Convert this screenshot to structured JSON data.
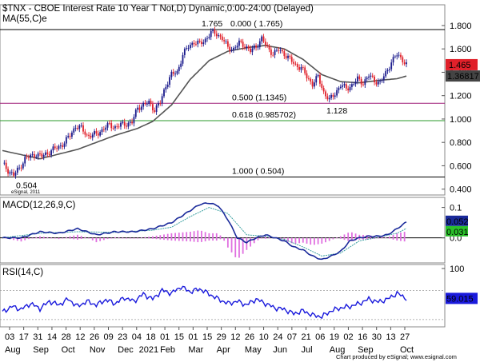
{
  "header": {
    "title": "$TNX - CBOE Interest Rate 10 Year T Not,D) Dynamic,0:00-24:00 (Delayed)",
    "ma_label": "MA(55,C)e",
    "macd_label": "MACD(12,26,9,C)",
    "rsi_label": "RSI(14,C)"
  },
  "footer": {
    "credit": "Chart produced by eSignal; www.esignal.com",
    "watermark": "eSignal, 2011"
  },
  "colors": {
    "up": "#1a1a8c",
    "down": "#e0202a",
    "ma": "#555555",
    "fib_500": "#a0207a",
    "fib_618": "#2a9a2a",
    "macd_line": "#1a2a9a",
    "signal_line": "#3aa0a0",
    "histogram": "#e070e0",
    "rsi": "#1a1adc",
    "price_box": "#e0202a",
    "ma_box": "#444444",
    "macd_box": "#1a2a9a",
    "signal_box": "#2ac02a",
    "rsi_box": "#1a1adc"
  },
  "chart_data": [
    {
      "type": "candlestick",
      "panel": "price",
      "ylim": [
        0.35,
        1.95
      ],
      "y_ticks": [
        "1.800",
        "1.600",
        "1.400",
        "1.200",
        "1.000",
        "0.800",
        "0.600",
        "0.400"
      ],
      "x_day_ticks": [
        "03",
        "17",
        "31",
        "14",
        "28",
        "12",
        "26",
        "09",
        "23",
        "04",
        "18",
        "01",
        "15",
        "01",
        "15",
        "29",
        "12",
        "26",
        "10",
        "24",
        "07",
        "21",
        "06",
        "19",
        "02",
        "16",
        "30",
        "13",
        "27"
      ],
      "x_month_labels": [
        "Aug",
        "Sep",
        "Oct",
        "Nov",
        "Dec",
        "2021",
        "Feb",
        "Mar",
        "Apr",
        "May",
        "Jun",
        "Jul",
        "Aug",
        "Sep",
        "Oct"
      ],
      "last_price": "1.465",
      "ma_value": "1.36817",
      "fib_lines": [
        {
          "label": "0.000 ( 1.765)",
          "value": 1.765
        },
        {
          "label": "0.500 (1.1345)",
          "value": 1.1345
        },
        {
          "label": "0.618 (0.985702)",
          "value": 0.985702
        },
        {
          "label": "1.000 ( 0.504)",
          "value": 0.504
        }
      ],
      "annotations": [
        {
          "text": "1.765",
          "value": 1.765
        },
        {
          "text": "1.128",
          "value": 1.128
        },
        {
          "text": "0.504",
          "value": 0.504
        }
      ],
      "close_path": [
        [
          0,
          0.62
        ],
        [
          3,
          0.56
        ],
        [
          6,
          0.52
        ],
        [
          9,
          0.58
        ],
        [
          12,
          0.66
        ],
        [
          15,
          0.68
        ],
        [
          18,
          0.7
        ],
        [
          21,
          0.68
        ],
        [
          24,
          0.71
        ],
        [
          27,
          0.74
        ],
        [
          30,
          0.76
        ],
        [
          33,
          0.8
        ],
        [
          36,
          0.86
        ],
        [
          39,
          0.94
        ],
        [
          42,
          0.92
        ],
        [
          45,
          0.86
        ],
        [
          48,
          0.86
        ],
        [
          51,
          0.88
        ],
        [
          54,
          0.92
        ],
        [
          57,
          0.95
        ],
        [
          60,
          0.93
        ],
        [
          63,
          0.95
        ],
        [
          66,
          0.96
        ],
        [
          69,
          0.97
        ],
        [
          72,
          1.1
        ],
        [
          75,
          1.12
        ],
        [
          78,
          1.14
        ],
        [
          81,
          1.08
        ],
        [
          84,
          1.14
        ],
        [
          87,
          1.29
        ],
        [
          90,
          1.38
        ],
        [
          93,
          1.4
        ],
        [
          96,
          1.55
        ],
        [
          99,
          1.62
        ],
        [
          102,
          1.66
        ],
        [
          105,
          1.64
        ],
        [
          108,
          1.68
        ],
        [
          111,
          1.74
        ],
        [
          114,
          1.73
        ],
        [
          117,
          1.69
        ],
        [
          120,
          1.61
        ],
        [
          123,
          1.6
        ],
        [
          126,
          1.65
        ],
        [
          129,
          1.63
        ],
        [
          132,
          1.58
        ],
        [
          135,
          1.62
        ],
        [
          138,
          1.69
        ],
        [
          141,
          1.61
        ],
        [
          144,
          1.56
        ],
        [
          147,
          1.59
        ],
        [
          150,
          1.56
        ],
        [
          153,
          1.51
        ],
        [
          156,
          1.46
        ],
        [
          159,
          1.44
        ],
        [
          162,
          1.36
        ],
        [
          165,
          1.3
        ],
        [
          168,
          1.36
        ],
        [
          171,
          1.23
        ],
        [
          174,
          1.16
        ],
        [
          177,
          1.22
        ],
        [
          180,
          1.29
        ],
        [
          183,
          1.26
        ],
        [
          186,
          1.29
        ],
        [
          189,
          1.34
        ],
        [
          192,
          1.31
        ],
        [
          195,
          1.37
        ],
        [
          198,
          1.33
        ],
        [
          201,
          1.31
        ],
        [
          204,
          1.39
        ],
        [
          207,
          1.49
        ],
        [
          210,
          1.55
        ],
        [
          213,
          1.51
        ],
        [
          215,
          1.465
        ]
      ],
      "ma_path": [
        [
          0,
          0.73
        ],
        [
          20,
          0.66
        ],
        [
          40,
          0.74
        ],
        [
          60,
          0.86
        ],
        [
          72,
          0.92
        ],
        [
          80,
          0.98
        ],
        [
          90,
          1.12
        ],
        [
          100,
          1.34
        ],
        [
          110,
          1.5
        ],
        [
          120,
          1.58
        ],
        [
          130,
          1.61
        ],
        [
          140,
          1.63
        ],
        [
          150,
          1.6
        ],
        [
          160,
          1.51
        ],
        [
          170,
          1.38
        ],
        [
          180,
          1.32
        ],
        [
          190,
          1.31
        ],
        [
          200,
          1.33
        ],
        [
          210,
          1.345
        ],
        [
          215,
          1.368
        ]
      ]
    },
    {
      "type": "macd",
      "panel": "macd",
      "ylim": [
        -0.08,
        0.12
      ],
      "y_ticks": [
        "0.1",
        "0.0"
      ],
      "macd_value": "0.052",
      "signal_value": "0.031",
      "macd_path": [
        [
          0,
          0.0
        ],
        [
          10,
          0.0
        ],
        [
          20,
          0.02
        ],
        [
          30,
          0.015
        ],
        [
          40,
          0.03
        ],
        [
          50,
          0.01
        ],
        [
          60,
          0.02
        ],
        [
          70,
          0.02
        ],
        [
          80,
          0.03
        ],
        [
          90,
          0.05
        ],
        [
          100,
          0.09
        ],
        [
          105,
          0.11
        ],
        [
          110,
          0.115
        ],
        [
          115,
          0.105
        ],
        [
          120,
          0.06
        ],
        [
          125,
          0.0
        ],
        [
          130,
          -0.015
        ],
        [
          135,
          0.0
        ],
        [
          140,
          0.01
        ],
        [
          145,
          0.0
        ],
        [
          150,
          -0.01
        ],
        [
          155,
          -0.03
        ],
        [
          160,
          -0.04
        ],
        [
          165,
          -0.06
        ],
        [
          170,
          -0.072
        ],
        [
          175,
          -0.06
        ],
        [
          180,
          -0.045
        ],
        [
          185,
          -0.01
        ],
        [
          190,
          0.0
        ],
        [
          195,
          0.005
        ],
        [
          200,
          0.005
        ],
        [
          205,
          0.01
        ],
        [
          210,
          0.03
        ],
        [
          215,
          0.052
        ]
      ],
      "signal_path": [
        [
          0,
          0.0
        ],
        [
          20,
          0.015
        ],
        [
          40,
          0.02
        ],
        [
          60,
          0.018
        ],
        [
          80,
          0.025
        ],
        [
          90,
          0.035
        ],
        [
          100,
          0.07
        ],
        [
          110,
          0.1
        ],
        [
          120,
          0.08
        ],
        [
          130,
          0.01
        ],
        [
          140,
          0.005
        ],
        [
          150,
          -0.005
        ],
        [
          160,
          -0.03
        ],
        [
          170,
          -0.06
        ],
        [
          180,
          -0.05
        ],
        [
          190,
          -0.01
        ],
        [
          200,
          0.002
        ],
        [
          210,
          0.015
        ],
        [
          215,
          0.031
        ]
      ]
    },
    {
      "type": "rsi",
      "panel": "rsi",
      "ylim": [
        20,
        100
      ],
      "y_ticks": [
        "100"
      ],
      "rsi_value": "59.015",
      "rsi_path": [
        [
          0,
          40
        ],
        [
          5,
          48
        ],
        [
          10,
          44
        ],
        [
          15,
          52
        ],
        [
          20,
          45
        ],
        [
          25,
          55
        ],
        [
          30,
          50
        ],
        [
          35,
          58
        ],
        [
          40,
          48
        ],
        [
          45,
          55
        ],
        [
          50,
          50
        ],
        [
          55,
          57
        ],
        [
          60,
          52
        ],
        [
          65,
          60
        ],
        [
          70,
          55
        ],
        [
          75,
          65
        ],
        [
          80,
          58
        ],
        [
          85,
          70
        ],
        [
          90,
          66
        ],
        [
          95,
          75
        ],
        [
          100,
          68
        ],
        [
          105,
          72
        ],
        [
          110,
          65
        ],
        [
          115,
          58
        ],
        [
          120,
          52
        ],
        [
          125,
          55
        ],
        [
          130,
          50
        ],
        [
          135,
          58
        ],
        [
          140,
          52
        ],
        [
          145,
          46
        ],
        [
          150,
          44
        ],
        [
          155,
          38
        ],
        [
          160,
          42
        ],
        [
          165,
          36
        ],
        [
          170,
          34
        ],
        [
          175,
          42
        ],
        [
          180,
          46
        ],
        [
          185,
          48
        ],
        [
          190,
          52
        ],
        [
          195,
          58
        ],
        [
          200,
          54
        ],
        [
          205,
          58
        ],
        [
          210,
          66
        ],
        [
          215,
          59
        ]
      ]
    }
  ]
}
